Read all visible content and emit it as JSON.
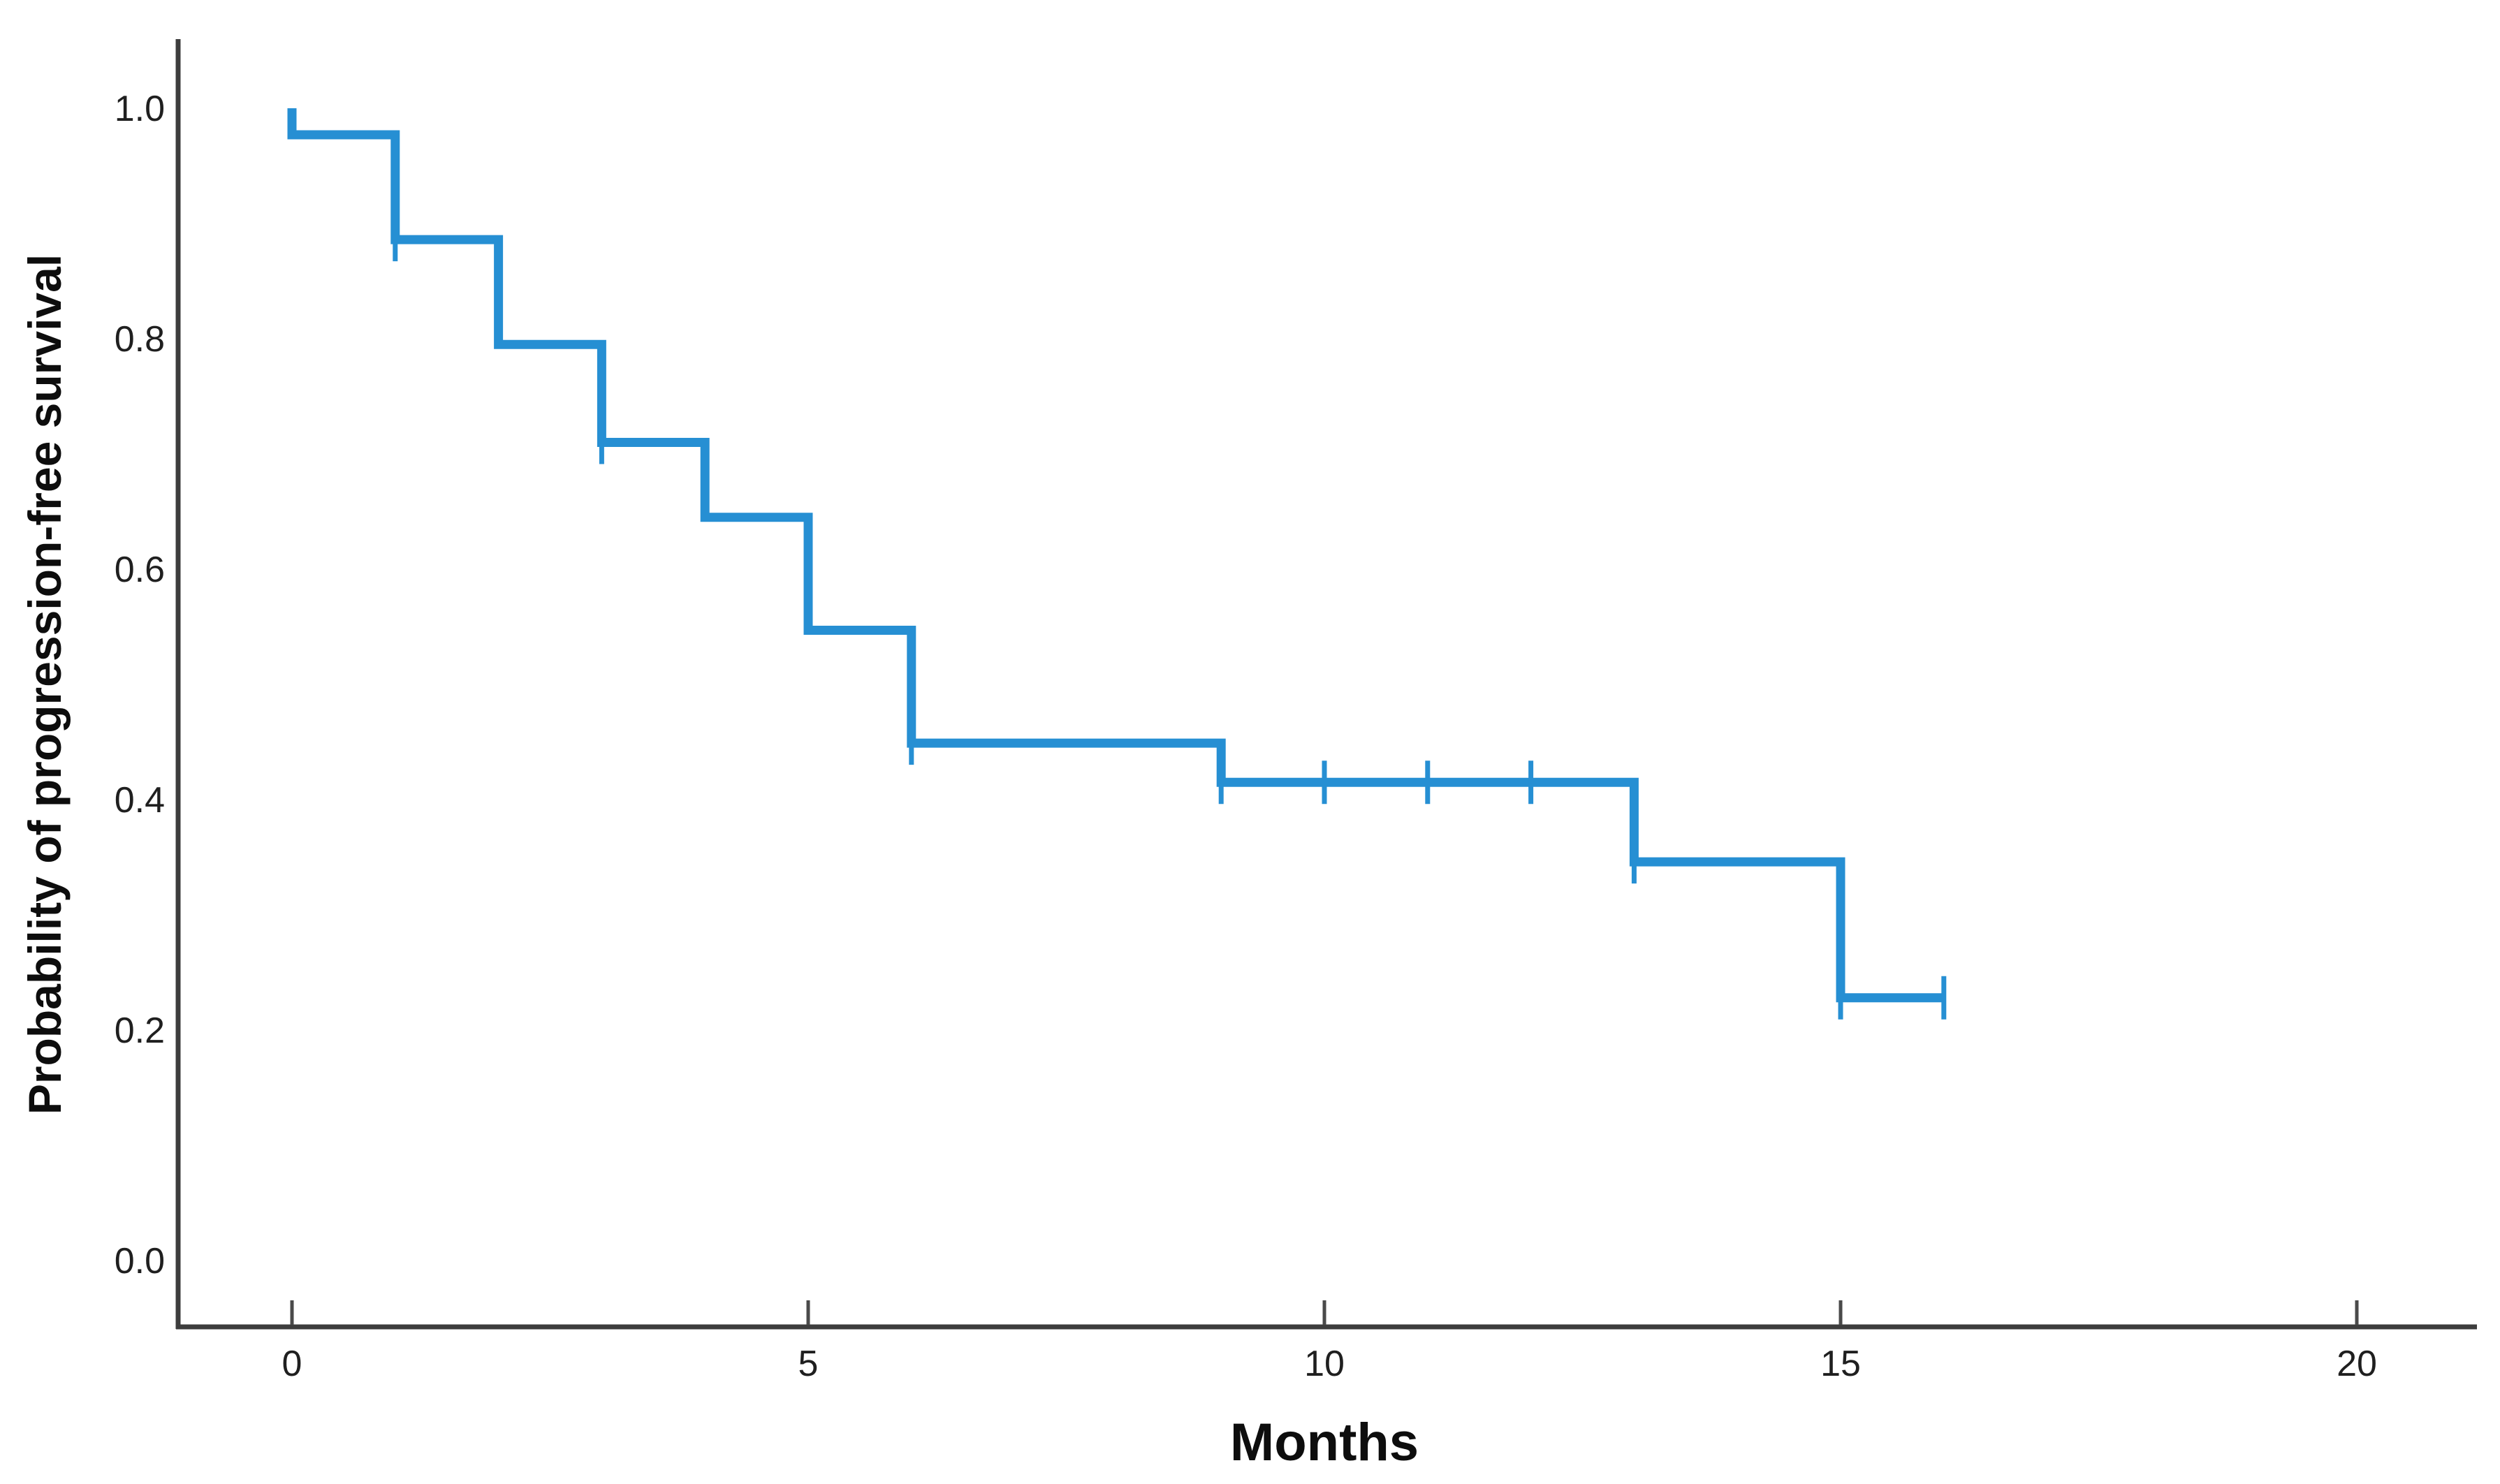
{
  "chart_data": {
    "type": "line",
    "subtype": "kaplan-meier-step-curve",
    "title": "",
    "xlabel": "Months",
    "ylabel": "Probability of progression-free survival",
    "grid": false,
    "legend": null,
    "xlim": [
      0,
      20
    ],
    "ylim": [
      0.0,
      1.0
    ],
    "x_ticks": [
      {
        "value": 0,
        "label": "0"
      },
      {
        "value": 5,
        "label": "5"
      },
      {
        "value": 10,
        "label": "10"
      },
      {
        "value": 15,
        "label": "15"
      },
      {
        "value": 20,
        "label": "20"
      }
    ],
    "y_ticks": [
      {
        "value": 1.0,
        "label": "1.0"
      },
      {
        "value": 0.8,
        "label": "0.8"
      },
      {
        "value": 0.6,
        "label": "0.6"
      },
      {
        "value": 0.4,
        "label": "0.4"
      },
      {
        "value": 0.2,
        "label": "0.2"
      },
      {
        "value": 0.0,
        "label": "0.0"
      }
    ],
    "series": [
      {
        "name": "Progression-free survival",
        "color": "#268fd3",
        "steps_time_probability": [
          [
            0,
            1.0
          ],
          [
            0,
            0.977
          ],
          [
            1,
            0.886
          ],
          [
            2,
            0.795
          ],
          [
            3,
            0.71
          ],
          [
            4,
            0.645
          ],
          [
            5,
            0.547
          ],
          [
            6,
            0.449
          ],
          [
            9,
            0.415
          ],
          [
            13,
            0.346
          ],
          [
            15,
            0.228
          ],
          [
            16,
            0.228
          ]
        ],
        "censor_marks_time_probability": [
          [
            1,
            0.886
          ],
          [
            3,
            0.71
          ],
          [
            6,
            0.449
          ],
          [
            9,
            0.415
          ],
          [
            10,
            0.415
          ],
          [
            11,
            0.415
          ],
          [
            12,
            0.415
          ],
          [
            13,
            0.346
          ],
          [
            15,
            0.228
          ],
          [
            16,
            0.228
          ]
        ]
      }
    ]
  },
  "colors": {
    "background": "#ffffff",
    "curve": "#268fd3",
    "axis_line": "#3d3d3d",
    "tick_mark": "#4a4a4a",
    "tick_label": "#1f1f1f",
    "axis_title": "#0d0d0d"
  }
}
